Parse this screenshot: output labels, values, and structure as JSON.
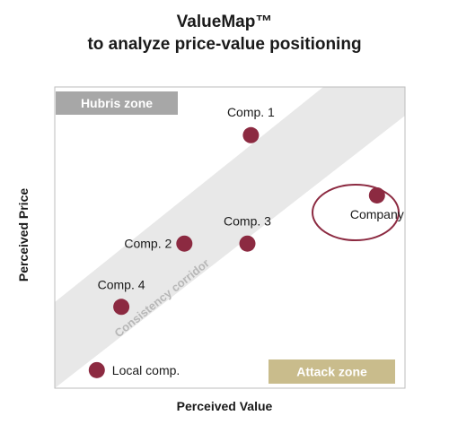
{
  "chart_data": {
    "type": "scatter",
    "title": "ValueMap™",
    "subtitle": "to analyze price-value positioning",
    "xlabel": "Perceived Value",
    "ylabel": "Perceived Price",
    "xlim": [
      0,
      100
    ],
    "ylim": [
      0,
      100
    ],
    "grid": false,
    "points": [
      {
        "label": "Comp. 1",
        "x": 56,
        "y": 84
      },
      {
        "label": "Company",
        "x": 92,
        "y": 64
      },
      {
        "label": "Comp. 3",
        "x": 55,
        "y": 48
      },
      {
        "label": "Comp. 2",
        "x": 37,
        "y": 48
      },
      {
        "label": "Comp. 4",
        "x": 19,
        "y": 27
      },
      {
        "label": "Local comp.",
        "x": 12,
        "y": 6
      }
    ],
    "highlighted_point": "Company",
    "corridor_label": "Consistency corridor",
    "zones": {
      "top_left": "Hubris zone",
      "bottom_right": "Attack zone"
    },
    "colors": {
      "marker": "#8c2a41",
      "corridor": "#e8e8e8",
      "hubris_zone": "#a7a7a7",
      "attack_zone": "#c9bc8c",
      "frame": "#bdbdbd"
    }
  }
}
